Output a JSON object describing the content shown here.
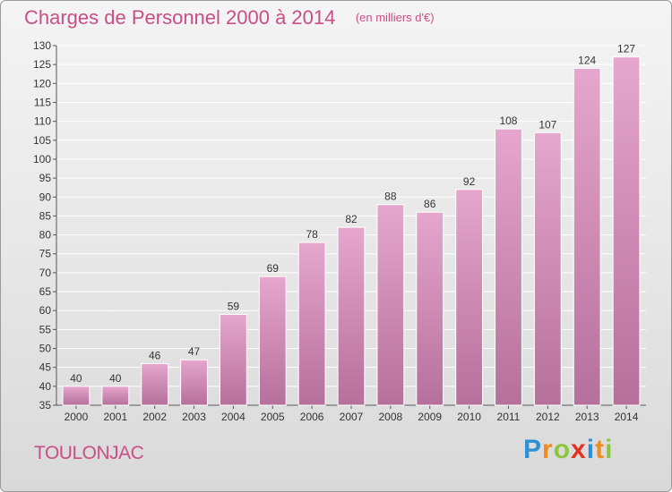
{
  "header": {
    "title": "Charges de Personnel 2000 à 2014",
    "subtitle": "(en milliers d'€)"
  },
  "place_name": "TOULONJAC",
  "logo": {
    "text": "Proxiti",
    "letters": [
      {
        "char": "P",
        "color": "#2d8fd4"
      },
      {
        "char": "r",
        "color": "#f08c1e"
      },
      {
        "char": "o",
        "color": "#8cc63f"
      },
      {
        "char": "x",
        "color": "#e2321d"
      },
      {
        "char": "i",
        "color": "#2d8fd4"
      },
      {
        "char": "t",
        "color": "#f08c1e"
      },
      {
        "char": "i",
        "color": "#8cc63f"
      }
    ]
  },
  "colors": {
    "accent": "#c84f86",
    "bar_top": "#e6a6cd",
    "bar_bottom": "#b5709b"
  },
  "chart_data": {
    "type": "bar",
    "title": "Charges de Personnel 2000 à 2014",
    "subtitle": "(en milliers d'€)",
    "categories": [
      "2000",
      "2001",
      "2002",
      "2003",
      "2004",
      "2005",
      "2006",
      "2007",
      "2008",
      "2009",
      "2010",
      "2011",
      "2012",
      "2013",
      "2014"
    ],
    "values": [
      40,
      40,
      46,
      47,
      59,
      69,
      78,
      82,
      88,
      86,
      92,
      108,
      107,
      124,
      127
    ],
    "ylim": [
      35,
      130
    ],
    "yticks": [
      35,
      40,
      45,
      50,
      55,
      60,
      65,
      70,
      75,
      80,
      85,
      90,
      95,
      100,
      105,
      110,
      115,
      120,
      125,
      130
    ],
    "grid": true,
    "legend": "none"
  }
}
